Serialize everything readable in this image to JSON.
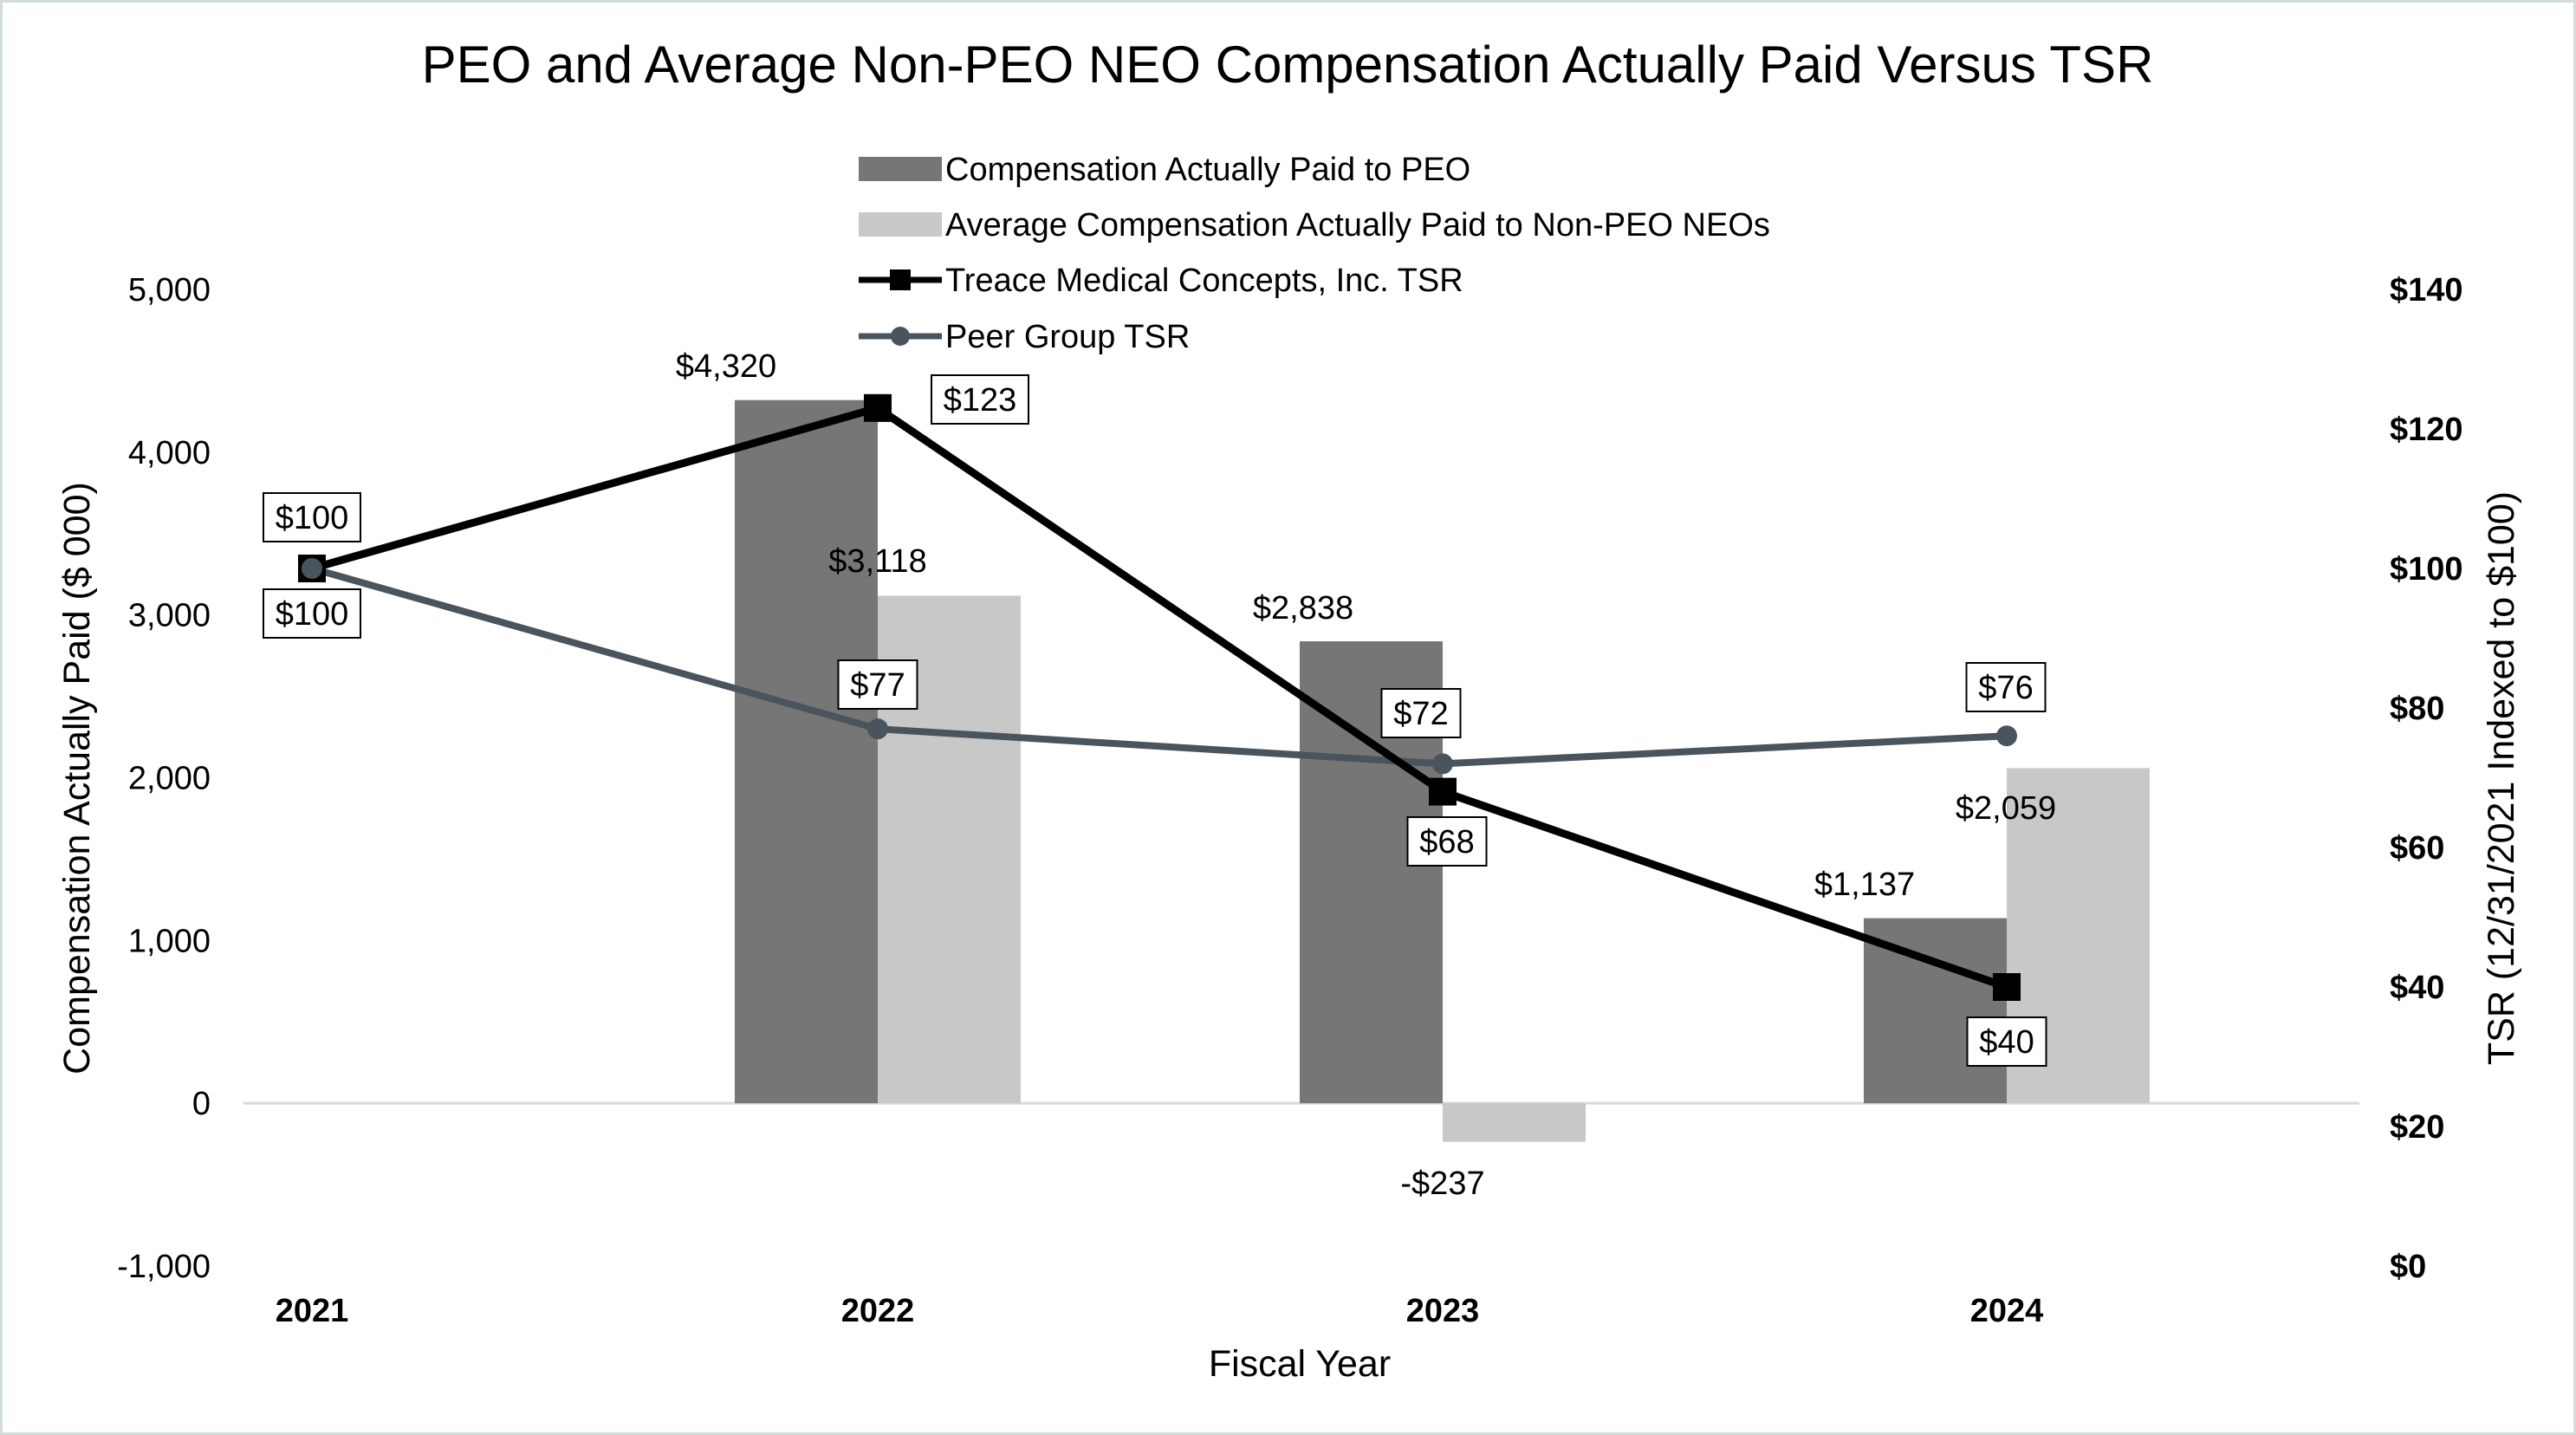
{
  "chart_data": {
    "type": "bar",
    "title": "PEO and Average Non-PEO NEO Compensation Actually Paid Versus TSR",
    "xlabel": "Fiscal Year",
    "ylabel": "Compensation Actually Paid ($ 000)",
    "y2label": "TSR (12/31/2021 Indexed to $100)",
    "categories": [
      "2021",
      "2022",
      "2023",
      "2024"
    ],
    "ylim": [
      -1000,
      5000
    ],
    "yticks": [
      "-1,000",
      "0",
      "1,000",
      "2,000",
      "3,000",
      "4,000",
      "5,000"
    ],
    "ytick_values": [
      -1000,
      0,
      1000,
      2000,
      3000,
      4000,
      5000
    ],
    "y2lim": [
      0,
      140
    ],
    "y2ticks": [
      "$0",
      "$20",
      "$40",
      "$60",
      "$80",
      "$100",
      "$120",
      "$140"
    ],
    "y2tick_values": [
      0,
      20,
      40,
      60,
      80,
      100,
      120,
      140
    ],
    "legend_position": "top-center",
    "colors": {
      "peo": "#767676",
      "non_peo": "#c8c8c8",
      "treace": "#000000",
      "peer": "#4a545e",
      "zero_line": "#d9d9d9"
    },
    "series": [
      {
        "name": "Compensation Actually Paid to PEO",
        "kind": "bar",
        "axis": "left",
        "values": [
          null,
          4320,
          2838,
          1137
        ],
        "labels": [
          "",
          "$4,320",
          "$2,838",
          "$1,137"
        ]
      },
      {
        "name": "Average Compensation Actually Paid to Non-PEO NEOs",
        "kind": "bar",
        "axis": "left",
        "values": [
          null,
          3118,
          -237,
          2059
        ],
        "labels": [
          "",
          "$3,118",
          "-$237",
          "$2,059"
        ]
      },
      {
        "name": "Treace Medical Concepts, Inc. TSR",
        "kind": "line",
        "marker": "square",
        "axis": "right",
        "values": [
          100,
          123,
          68,
          40
        ],
        "labels": [
          "$100",
          "$123",
          "$68",
          "$40"
        ]
      },
      {
        "name": "Peer Group TSR",
        "kind": "line",
        "marker": "circle",
        "axis": "right",
        "values": [
          100,
          77,
          72,
          76
        ],
        "labels": [
          "$100",
          "$77",
          "$72",
          "$76"
        ]
      }
    ]
  }
}
